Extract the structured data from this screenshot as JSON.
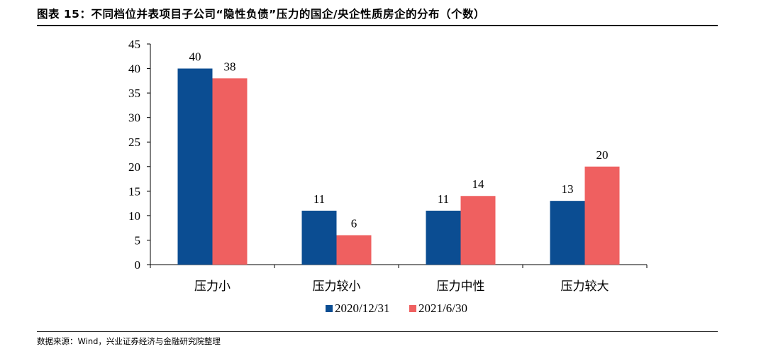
{
  "title": "图表 15：不同档位并表项目子公司“隐性负债”压力的国企/央企性质房企的分布（个数）",
  "source": "数据来源：Wind，兴业证券经济与金融研究院整理",
  "chart_data": {
    "type": "bar",
    "title": "",
    "xlabel": "",
    "ylabel": "",
    "categories": [
      "压力小",
      "压力较小",
      "压力中性",
      "压力较大"
    ],
    "series": [
      {
        "name": "2020/12/31",
        "values": [
          40,
          11,
          11,
          13
        ],
        "color": "#0b4d92"
      },
      {
        "name": "2021/6/30",
        "values": [
          38,
          6,
          14,
          20
        ],
        "color": "#ef6060"
      }
    ],
    "ylim": [
      0,
      45
    ],
    "yticks": [
      0,
      5,
      10,
      15,
      20,
      25,
      30,
      35,
      40,
      45
    ],
    "grid": false,
    "legend_position": "bottom-center",
    "data_labels": true
  }
}
